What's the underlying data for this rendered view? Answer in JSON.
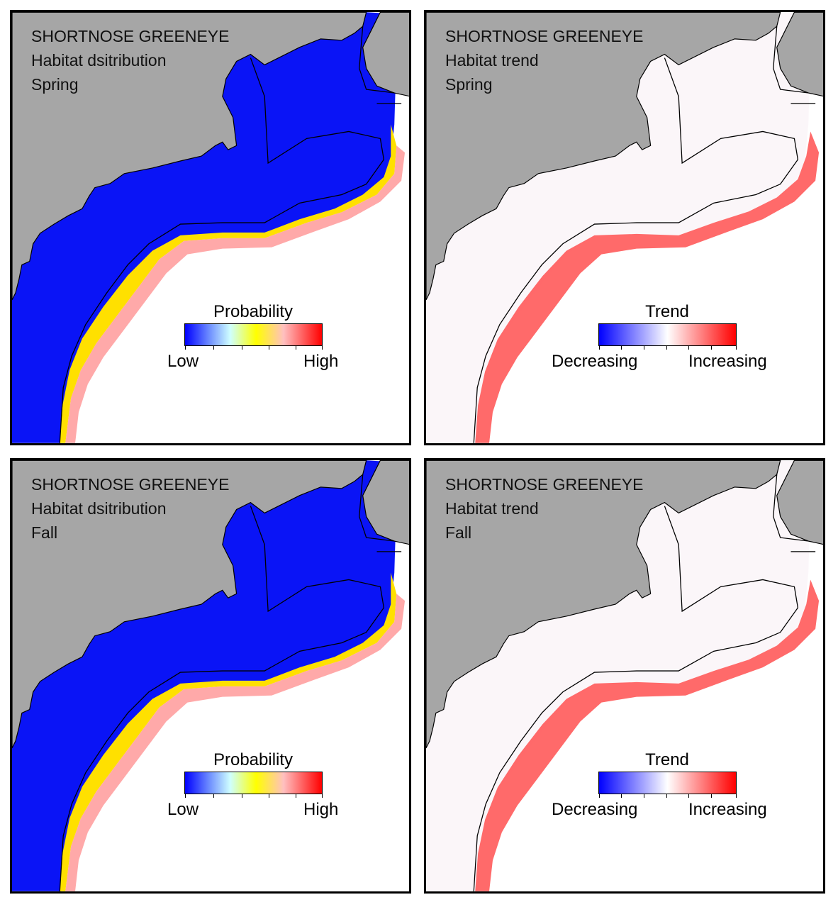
{
  "panels": [
    {
      "id": "p1",
      "species": "SHORTNOSE GREENEYE",
      "measure": "Habitat dsitribution",
      "season": "Spring",
      "legend": {
        "title": "Probability",
        "low": "Low",
        "high": "High",
        "type": "probability"
      }
    },
    {
      "id": "p2",
      "species": "SHORTNOSE GREENEYE",
      "measure": "Habitat trend",
      "season": "Spring",
      "legend": {
        "title": "Trend",
        "low": "Decreasing",
        "high": "Increasing",
        "type": "trend"
      }
    },
    {
      "id": "p3",
      "species": "SHORTNOSE GREENEYE",
      "measure": "Habitat dsitribution",
      "season": "Fall",
      "legend": {
        "title": "Probability",
        "low": "Low",
        "high": "High",
        "type": "probability"
      }
    },
    {
      "id": "p4",
      "species": "SHORTNOSE GREENEYE",
      "measure": "Habitat trend",
      "season": "Fall",
      "legend": {
        "title": "Trend",
        "low": "Decreasing",
        "high": "Increasing",
        "type": "trend"
      }
    }
  ],
  "colors": {
    "land": "#a6a6a6",
    "ocean": "#ffffff",
    "probability_scale": [
      "#0000ff",
      "#7f9fff",
      "#bfffff",
      "#ffff00",
      "#ffb0b0",
      "#ff0000"
    ],
    "trend_scale": [
      "#0000ff",
      "#ffffff",
      "#ff0000"
    ],
    "shelf_high_probability": "#0000ff",
    "slope_edge_probability": "#ffff00",
    "trend_increase": "#ff0000"
  }
}
